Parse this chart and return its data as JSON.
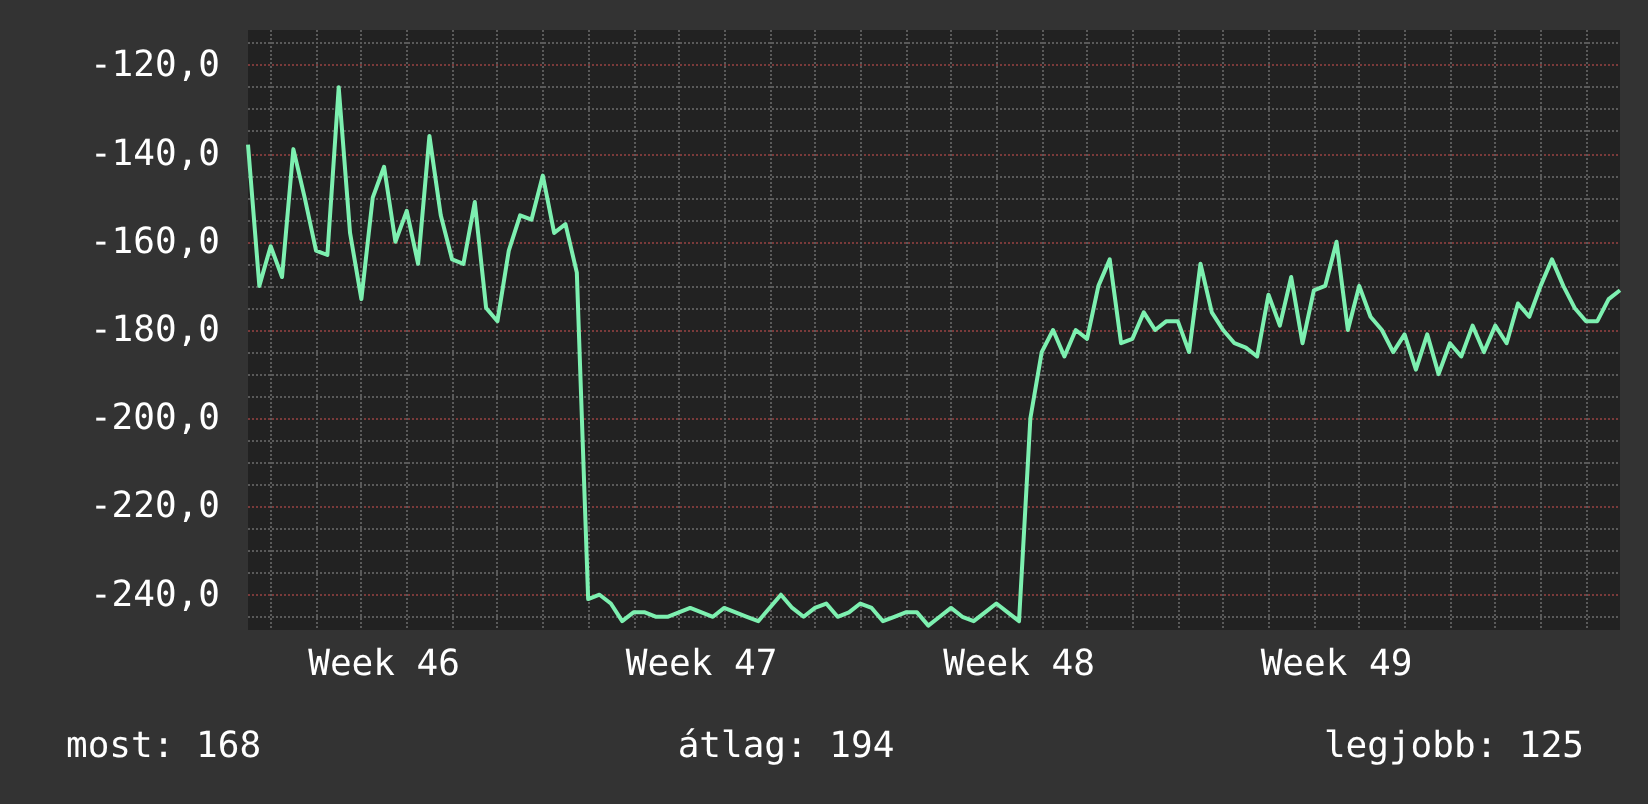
{
  "chart_data": {
    "type": "line",
    "color": "#7df0b0",
    "grid": true,
    "marker": "none",
    "line_style": "solid",
    "ylim": [
      -248,
      -112
    ],
    "yticks": [
      {
        "value": -245,
        "label": null
      },
      {
        "value": -240,
        "label": "-240,0"
      },
      {
        "value": -235,
        "label": null
      },
      {
        "value": -230,
        "label": null
      },
      {
        "value": -225,
        "label": null
      },
      {
        "value": -220,
        "label": "-220,0"
      },
      {
        "value": -215,
        "label": null
      },
      {
        "value": -210,
        "label": null
      },
      {
        "value": -205,
        "label": null
      },
      {
        "value": -200,
        "label": "-200,0"
      },
      {
        "value": -195,
        "label": null
      },
      {
        "value": -190,
        "label": null
      },
      {
        "value": -185,
        "label": null
      },
      {
        "value": -180,
        "label": "-180,0"
      },
      {
        "value": -175,
        "label": null
      },
      {
        "value": -170,
        "label": null
      },
      {
        "value": -165,
        "label": null
      },
      {
        "value": -160,
        "label": "-160,0"
      },
      {
        "value": -155,
        "label": null
      },
      {
        "value": -150,
        "label": null
      },
      {
        "value": -145,
        "label": null
      },
      {
        "value": -140,
        "label": "-140,0"
      },
      {
        "value": -135,
        "label": null
      },
      {
        "value": -130,
        "label": null
      },
      {
        "value": -125,
        "label": null
      },
      {
        "value": -120,
        "label": "-120,0"
      },
      {
        "value": -115,
        "label": null
      }
    ],
    "categories": [
      null,
      null,
      null,
      null,
      null,
      null,
      null,
      null,
      null,
      null,
      null,
      null,
      "Week 46",
      null,
      null,
      null,
      null,
      null,
      null,
      null,
      null,
      null,
      null,
      null,
      null,
      null,
      null,
      null,
      null,
      null,
      null,
      null,
      null,
      null,
      null,
      null,
      null,
      null,
      null,
      null,
      "Week 47",
      null,
      null,
      null,
      null,
      null,
      null,
      null,
      null,
      null,
      null,
      null,
      null,
      null,
      null,
      null,
      null,
      null,
      null,
      null,
      null,
      null,
      null,
      null,
      null,
      null,
      null,
      null,
      "Week 48",
      null,
      null,
      null,
      null,
      null,
      null,
      null,
      null,
      null,
      null,
      null,
      null,
      null,
      null,
      null,
      null,
      null,
      null,
      null,
      null,
      null,
      null,
      null,
      null,
      null,
      null,
      null,
      "Week 49",
      null,
      null,
      null,
      null,
      null,
      null,
      null,
      null,
      null,
      null,
      null,
      null,
      null,
      null,
      null,
      null,
      null,
      null,
      null,
      null,
      null,
      null,
      null,
      null,
      null
    ],
    "values": [
      -138,
      -170,
      -161,
      -168,
      -139,
      -150,
      -162,
      -163,
      -125,
      -158,
      -173,
      -150,
      -143,
      -160,
      -153,
      -165,
      -136,
      -154,
      -164,
      -165,
      -151,
      -175,
      -178,
      -162,
      -154,
      -155,
      -145,
      -158,
      -156,
      -167,
      -241,
      -240,
      -242,
      -246,
      -244,
      -244,
      -245,
      -245,
      -244,
      -243,
      -244,
      -245,
      -243,
      -244,
      -245,
      -246,
      -243,
      -240,
      -243,
      -245,
      -243,
      -242,
      -245,
      -244,
      -242,
      -243,
      -246,
      -245,
      -244,
      -244,
      -247,
      -245,
      -243,
      -245,
      -246,
      -244,
      -242,
      -244,
      -246,
      -200,
      -185,
      -180,
      -186,
      -180,
      -182,
      -170,
      -164,
      -183,
      -182,
      -176,
      -180,
      -178,
      -178,
      -185,
      -165,
      -176,
      -180,
      -183,
      -184,
      -186,
      -172,
      -179,
      -168,
      -183,
      -171,
      -170,
      -160,
      -180,
      -170,
      -177,
      -180,
      -185,
      -181,
      -189,
      -181,
      -190,
      -183,
      -186,
      -179,
      -185,
      -179,
      -183,
      -174,
      -177,
      -170,
      -164,
      -170,
      -175,
      -178,
      -178,
      -173,
      -171
    ],
    "annotations": [
      "most: 168",
      "átlag: 194",
      "legjobb: 125"
    ]
  }
}
